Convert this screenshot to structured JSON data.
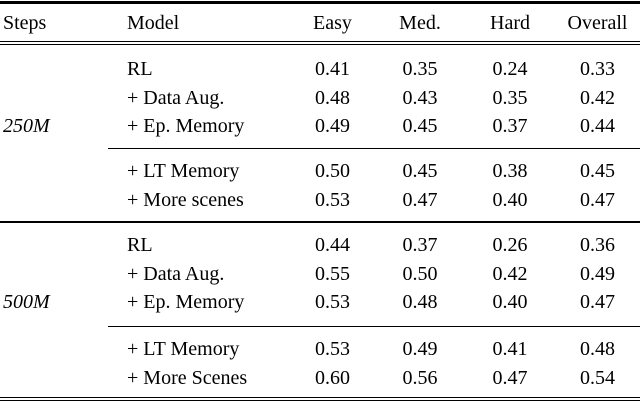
{
  "table": {
    "columns": [
      "Steps",
      "Model",
      "Easy",
      "Med.",
      "Hard",
      "Overall"
    ],
    "groups": [
      {
        "steps": "250M",
        "block1": [
          {
            "model": "RL",
            "easy": "0.41",
            "med": "0.35",
            "hard": "0.24",
            "overall": "0.33"
          },
          {
            "model": "+ Data Aug.",
            "easy": "0.48",
            "med": "0.43",
            "hard": "0.35",
            "overall": "0.42"
          },
          {
            "model": "+ Ep. Memory",
            "easy": "0.49",
            "med": "0.45",
            "hard": "0.37",
            "overall": "0.44"
          }
        ],
        "block2": [
          {
            "model": "+ LT Memory",
            "easy": "0.50",
            "med": "0.45",
            "hard": "0.38",
            "overall": "0.45"
          },
          {
            "model": "+ More scenes",
            "easy": "0.53",
            "med": "0.47",
            "hard": "0.40",
            "overall": "0.47"
          }
        ]
      },
      {
        "steps": "500M",
        "block1": [
          {
            "model": "RL",
            "easy": "0.44",
            "med": "0.37",
            "hard": "0.26",
            "overall": "0.36"
          },
          {
            "model": "+ Data Aug.",
            "easy": "0.55",
            "med": "0.50",
            "hard": "0.42",
            "overall": "0.49"
          },
          {
            "model": "+ Ep. Memory",
            "easy": "0.53",
            "med": "0.48",
            "hard": "0.40",
            "overall": "0.47"
          }
        ],
        "block2": [
          {
            "model": "+ LT Memory",
            "easy": "0.53",
            "med": "0.49",
            "hard": "0.41",
            "overall": "0.48"
          },
          {
            "model": "+ More Scenes",
            "easy": "0.60",
            "med": "0.56",
            "hard": "0.47",
            "overall": "0.54"
          }
        ]
      }
    ]
  }
}
